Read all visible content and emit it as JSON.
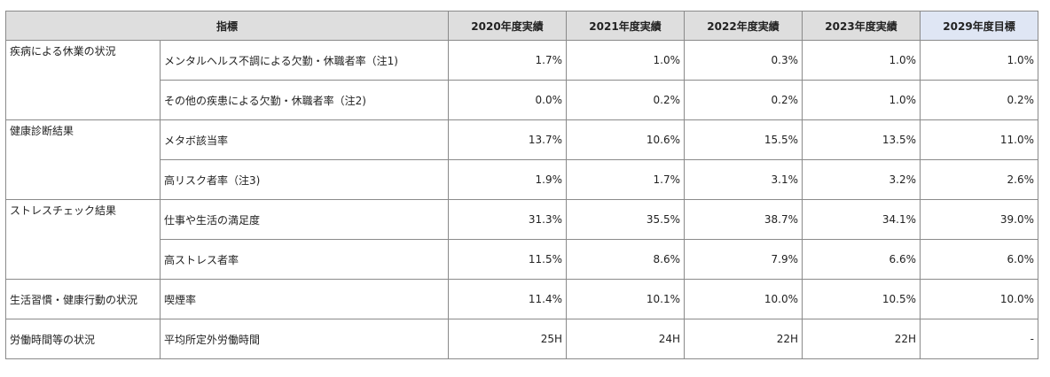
{
  "header": {
    "indicator": "指標",
    "years": [
      "2020年度実績",
      "2021年度実績",
      "2022年度実績",
      "2023年度実績",
      "2029年度目標"
    ]
  },
  "groups": [
    {
      "category": "疾病による休業の状況",
      "rows": [
        {
          "item": "メンタルヘルス不調による欠勤・休職者率（注1)",
          "values": [
            "1.7%",
            "1.0%",
            "0.3%",
            "1.0%",
            "1.0%"
          ]
        },
        {
          "item": "その他の疾患による欠勤・休職者率（注2)",
          "values": [
            "0.0%",
            "0.2%",
            "0.2%",
            "1.0%",
            "0.2%"
          ]
        }
      ]
    },
    {
      "category": "健康診断結果",
      "rows": [
        {
          "item": "メタボ該当率",
          "values": [
            "13.7%",
            "10.6%",
            "15.5%",
            "13.5%",
            "11.0%"
          ]
        },
        {
          "item": "高リスク者率（注3)",
          "values": [
            "1.9%",
            "1.7%",
            "3.1%",
            "3.2%",
            "2.6%"
          ]
        }
      ]
    },
    {
      "category": "ストレスチェック結果",
      "rows": [
        {
          "item": "仕事や生活の満足度",
          "values": [
            "31.3%",
            "35.5%",
            "38.7%",
            "34.1%",
            "39.0%"
          ]
        },
        {
          "item": "高ストレス者率",
          "values": [
            "11.5%",
            "8.6%",
            "7.9%",
            "6.6%",
            "6.0%"
          ]
        }
      ]
    },
    {
      "category": "生活習慣・健康行動の状況",
      "rows": [
        {
          "item": "喫煙率",
          "values": [
            "11.4%",
            "10.1%",
            "10.0%",
            "10.5%",
            "10.0%"
          ]
        }
      ]
    },
    {
      "category": "労働時間等の状況",
      "rows": [
        {
          "item": "平均所定外労働時間",
          "values": [
            "25H",
            "24H",
            "22H",
            "22H",
            "-"
          ]
        }
      ]
    }
  ]
}
